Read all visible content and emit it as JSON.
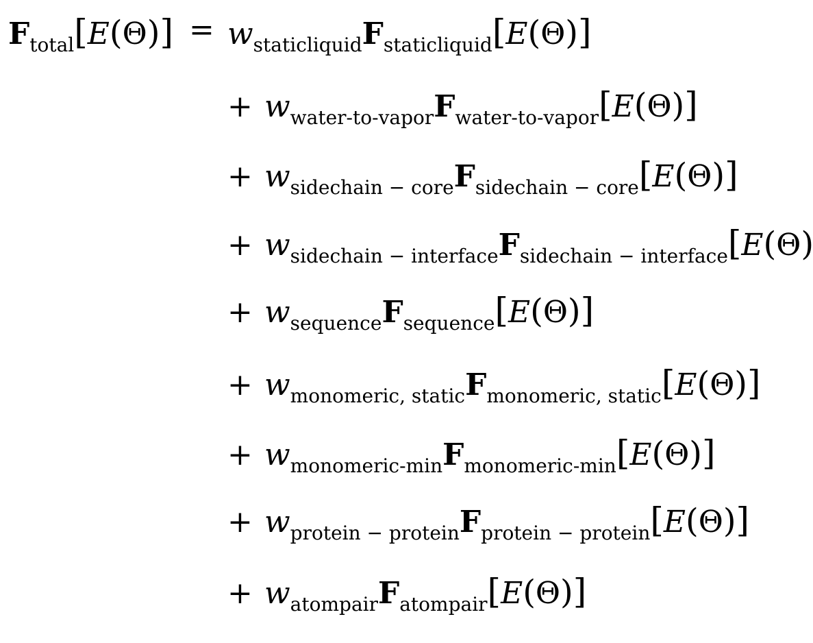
{
  "lhs": {
    "symbol": "F",
    "subscript": "total"
  },
  "equals": "=",
  "plus": "+",
  "weight_symbol": "w",
  "functional_symbol": "F",
  "argument": {
    "open_bracket": "[",
    "energy": "E",
    "open_paren": "(",
    "theta": "Θ",
    "close_paren": ")",
    "close_bracket": "]"
  },
  "terms": [
    {
      "subscript": "staticliquid"
    },
    {
      "subscript": "water-to-vapor"
    },
    {
      "subscript": "sidechain − core"
    },
    {
      "subscript": "sidechain − interface"
    },
    {
      "subscript": "sequence"
    },
    {
      "subscript": "monomeric, static"
    },
    {
      "subscript": "monomeric-min"
    },
    {
      "subscript": "protein − protein"
    },
    {
      "subscript": "atompair"
    }
  ]
}
